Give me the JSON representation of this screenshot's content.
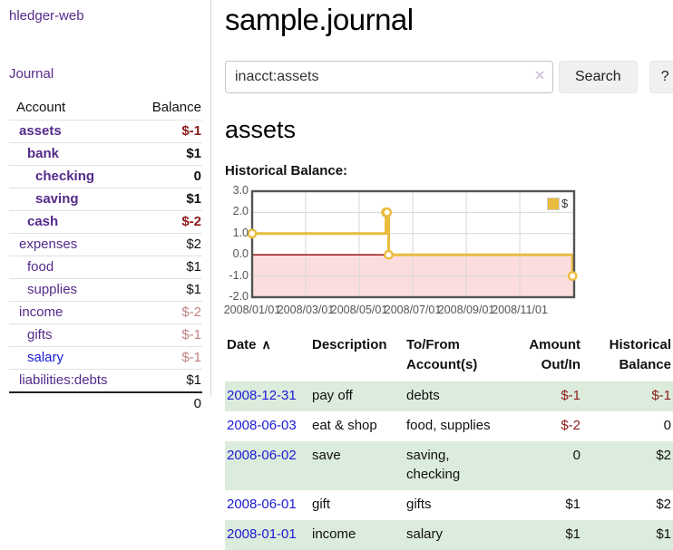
{
  "palette": {
    "purple": "#552a8b",
    "blue": "#1a1ad6",
    "neg": "#8b1a1a",
    "negdim": "#c08484",
    "rowgreen": "#dcecdc",
    "axis": "#545454",
    "btnbg": "#f0f0f0"
  },
  "sidebar": {
    "app_title": "hledger-web",
    "journal_link": "Journal",
    "accounts_header": {
      "account": "Account",
      "balance": "Balance"
    },
    "accounts": [
      {
        "name": "assets",
        "balance": "$-1",
        "indent": 0,
        "bold": true,
        "balance_style": "neg"
      },
      {
        "name": "bank",
        "balance": "$1",
        "indent": 1,
        "bold": true,
        "balance_style": ""
      },
      {
        "name": "checking",
        "balance": "0",
        "indent": 2,
        "bold": true,
        "balance_style": ""
      },
      {
        "name": "saving",
        "balance": "$1",
        "indent": 2,
        "bold": true,
        "balance_style": ""
      },
      {
        "name": "cash",
        "balance": "$-2",
        "indent": 1,
        "bold": true,
        "balance_style": "neg"
      },
      {
        "name": "expenses",
        "balance": "$2",
        "indent": 0,
        "bold": false,
        "balance_style": ""
      },
      {
        "name": "food",
        "balance": "$1",
        "indent": 1,
        "bold": false,
        "balance_style": ""
      },
      {
        "name": "supplies",
        "balance": "$1",
        "indent": 1,
        "bold": false,
        "balance_style": ""
      },
      {
        "name": "income",
        "balance": "$-2",
        "indent": 0,
        "bold": false,
        "balance_style": "negdim"
      },
      {
        "name": "gifts",
        "balance": "$-1",
        "indent": 1,
        "bold": false,
        "balance_style": "negdim"
      },
      {
        "name": "salary",
        "balance": "$-1",
        "indent": 1,
        "bold": false,
        "balance_style": "negdim",
        "link_color": "blue"
      },
      {
        "name": "liabilities:debts",
        "balance": "$1",
        "indent": 0,
        "bold": false,
        "balance_style": ""
      }
    ],
    "total": "0"
  },
  "main": {
    "title": "sample.journal",
    "search": {
      "value": "inacct:assets",
      "clear_icon": "✕",
      "button_label": "Search",
      "help_label": "?"
    },
    "account_heading": "assets"
  },
  "chart_data": {
    "type": "line",
    "title": "Historical Balance:",
    "legend_position": "top-right",
    "x_unit": "months since 2008-01-01",
    "xlim": [
      0,
      12.03
    ],
    "ylim": [
      -2,
      3
    ],
    "y_ticks": [
      {
        "v": 3,
        "label": "3.0"
      },
      {
        "v": 2,
        "label": "2.0"
      },
      {
        "v": 1,
        "label": "1.0"
      },
      {
        "v": 0,
        "label": "0.0"
      },
      {
        "v": -1,
        "label": "-1.0"
      },
      {
        "v": -2,
        "label": "-2.0"
      }
    ],
    "x_ticks": [
      {
        "v": 0,
        "label": "2008/01/01"
      },
      {
        "v": 2,
        "label": "2008/03/01"
      },
      {
        "v": 4,
        "label": "2008/05/01"
      },
      {
        "v": 6,
        "label": "2008/07/01"
      },
      {
        "v": 8,
        "label": "2008/09/01"
      },
      {
        "v": 10,
        "label": "2008/11/01"
      }
    ],
    "series": [
      {
        "name": "$",
        "color": "#e9bc3e",
        "type": "step",
        "points": [
          {
            "date": "2008-01-01",
            "x": 0,
            "y": 1
          },
          {
            "date": "2008-06-01",
            "x": 5.0,
            "y": 2
          },
          {
            "date": "2008-06-02",
            "x": 5.04,
            "y": 2
          },
          {
            "date": "2008-06-03",
            "x": 5.1,
            "y": 0
          },
          {
            "date": "2008-12-31",
            "x": 11.97,
            "y": -1
          }
        ]
      }
    ],
    "negative_region_fill": "#fcdddd",
    "zero_line_color": "#8b0000",
    "grid": true
  },
  "register": {
    "headers": {
      "date": "Date",
      "sort_icon": "∧",
      "description": "Description",
      "tofrom_line1": "To/From",
      "tofrom_line2": "Account(s)",
      "amount_line1": "Amount",
      "amount_line2": "Out/In",
      "balance_line1": "Historical",
      "balance_line2": "Balance"
    },
    "rows": [
      {
        "date": "2008-12-31",
        "description": "pay off",
        "accounts": "debts",
        "amount": "$-1",
        "amount_neg": true,
        "balance": "$-1",
        "balance_neg": true
      },
      {
        "date": "2008-06-03",
        "description": "eat & shop",
        "accounts": "food, supplies",
        "amount": "$-2",
        "amount_neg": true,
        "balance": "0",
        "balance_neg": false
      },
      {
        "date": "2008-06-02",
        "description": "save",
        "accounts": "saving, checking",
        "amount": "0",
        "amount_neg": false,
        "balance": "$2",
        "balance_neg": false
      },
      {
        "date": "2008-06-01",
        "description": "gift",
        "accounts": "gifts",
        "amount": "$1",
        "amount_neg": false,
        "balance": "$2",
        "balance_neg": false
      },
      {
        "date": "2008-01-01",
        "description": "income",
        "accounts": "salary",
        "amount": "$1",
        "amount_neg": false,
        "balance": "$1",
        "balance_neg": false
      }
    ]
  }
}
